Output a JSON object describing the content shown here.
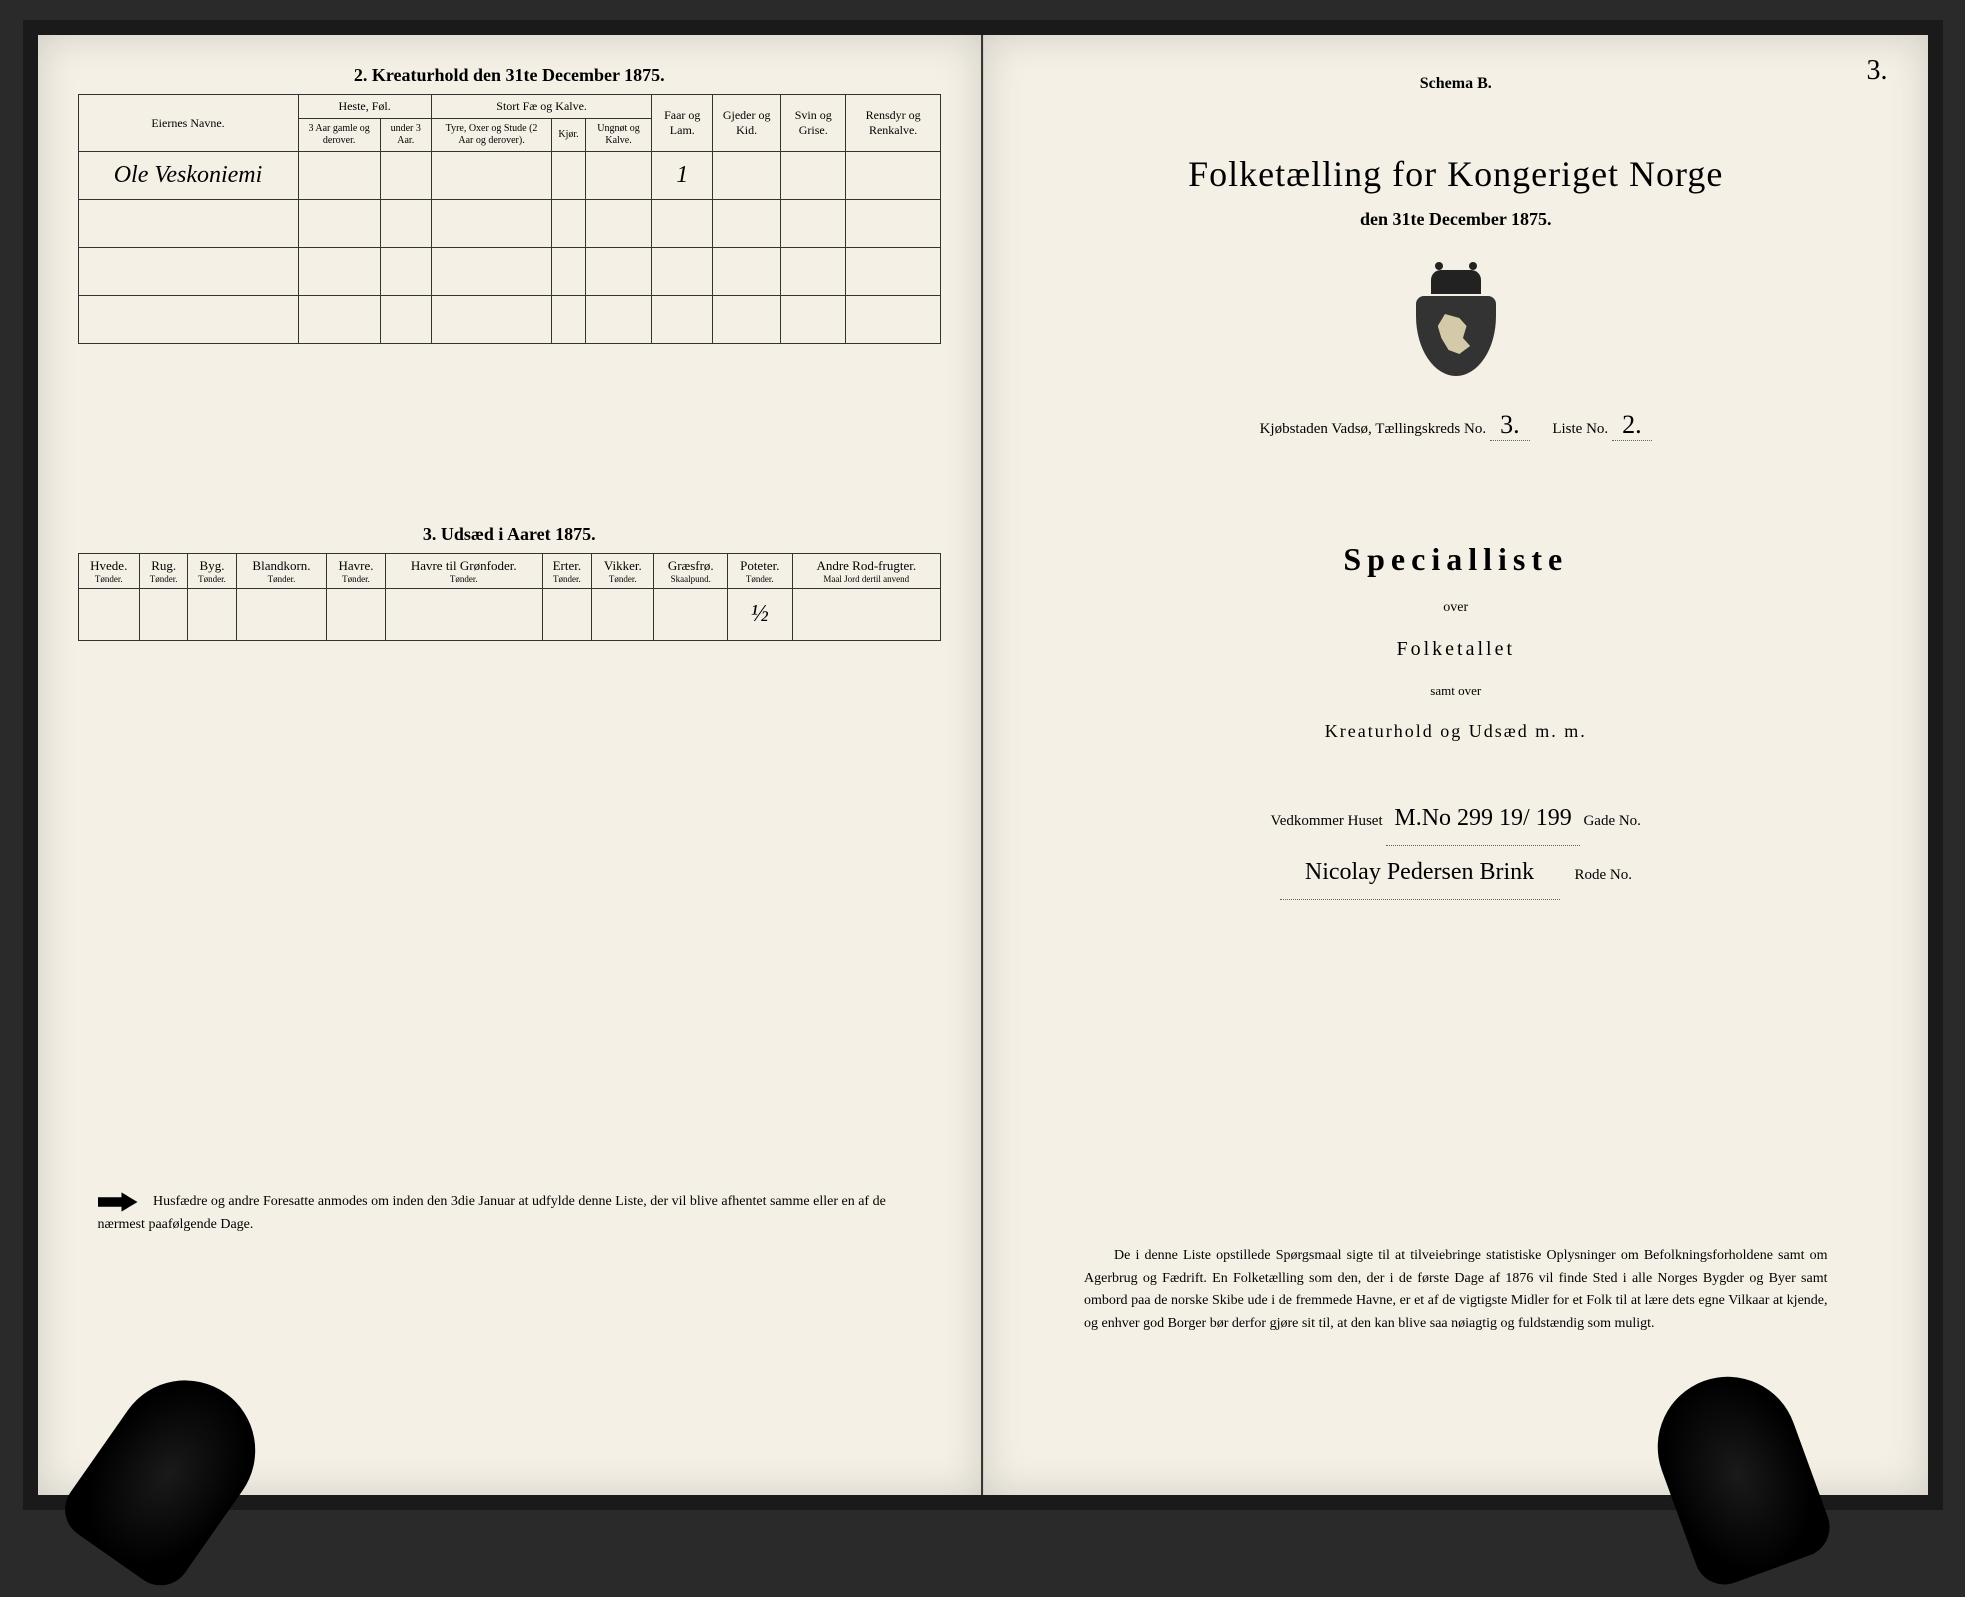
{
  "left": {
    "section2_title": "2.  Kreaturhold den 31te December 1875.",
    "owner_header": "Eiernes Navne.",
    "group_heste": "Heste, Føl.",
    "group_stort": "Stort Fæ og Kalve.",
    "col_heste_old": "3 Aar gamle og derover.",
    "col_heste_young": "under 3 Aar.",
    "col_tyre": "Tyre, Oxer og Stude (2 Aar og derover).",
    "col_kjor": "Kjør.",
    "col_ungnot": "Ungnøt og Kalve.",
    "col_faar": "Faar og Lam.",
    "col_gjeder": "Gjeder og Kid.",
    "col_svin": "Svin og Grise.",
    "col_ren": "Rensdyr og Renkalve.",
    "owner_value": "Ole Veskoniemi",
    "faar_value": "1",
    "section3_title": "3.  Udsæd i Aaret 1875.",
    "seed_cols": [
      {
        "name": "Hvede.",
        "unit": "Tønder."
      },
      {
        "name": "Rug.",
        "unit": "Tønder."
      },
      {
        "name": "Byg.",
        "unit": "Tønder."
      },
      {
        "name": "Blandkorn.",
        "unit": "Tønder."
      },
      {
        "name": "Havre.",
        "unit": "Tønder."
      },
      {
        "name": "Havre til Grønfoder.",
        "unit": "Tønder."
      },
      {
        "name": "Erter.",
        "unit": "Tønder."
      },
      {
        "name": "Vikker.",
        "unit": "Tønder."
      },
      {
        "name": "Græsfrø.",
        "unit": "Skaalpund."
      },
      {
        "name": "Poteter.",
        "unit": "Tønder."
      },
      {
        "name": "Andre Rod-frugter.",
        "unit": "Maal Jord dertil anvend"
      }
    ],
    "poteter_value": "½",
    "footer_text": "Husfædre og andre Foresatte anmodes om inden den 3die Januar at udfylde denne Liste, der vil blive afhentet samme eller en af de nærmest paafølgende Dage."
  },
  "right": {
    "schema": "Schema B.",
    "page_number": "3.",
    "title": "Folketælling for Kongeriget Norge",
    "subtitle": "den 31te December 1875.",
    "district_prefix": "Kjøbstaden Vadsø, Tællingskreds No.",
    "district_no": "3.",
    "liste_label": "Liste No.",
    "liste_no": "2.",
    "special": "Specialliste",
    "over": "over",
    "folketallet": "Folketallet",
    "samt": "samt over",
    "kreatur": "Kreaturhold og Udsæd m. m.",
    "vedkommer": "Vedkommer Huset",
    "huset_hw": "M.No 299  19/ 199",
    "gade": "Gade No.",
    "owner_hw": "Nicolay Pedersen Brink",
    "rode": "Rode No.",
    "bottom_para": "De i denne Liste opstillede Spørgsmaal sigte til at tilveiebringe statistiske Oplysninger om Befolkningsforholdene samt om Agerbrug og Fædrift. En Folketælling som den, der i de første Dage af 1876 vil finde Sted i alle Norges Bygder og Byer samt ombord paa de norske Skibe ude i de fremmede Havne, er et af de vigtigste Midler for et Folk til at lære dets egne Vilkaar at kjende, og enhver god Borger bør derfor gjøre sit til, at den kan blive saa nøiagtig og fuldstændig som muligt."
  }
}
